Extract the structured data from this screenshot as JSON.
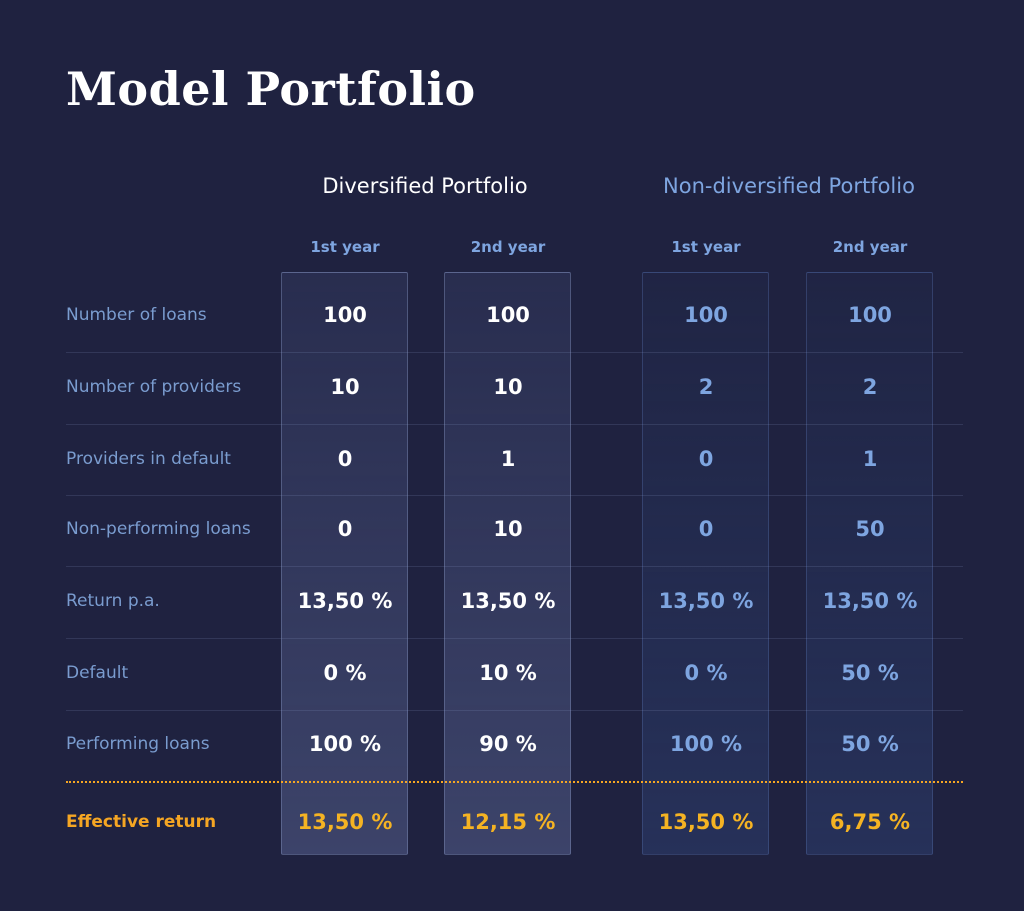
{
  "title": "Model Portfolio",
  "groups": {
    "diversified": "Diversified Portfolio",
    "non_diversified": "Non-diversified Portfolio"
  },
  "columns": [
    "1st year",
    "2nd year",
    "1st year",
    "2nd year"
  ],
  "colors": {
    "background": "#1f2240",
    "white": "#ffffff",
    "blue": "#7ea5e0",
    "label": "#7a9ccf",
    "gold": "#f5a623"
  },
  "chart_data": {
    "type": "table",
    "title": "Model Portfolio",
    "column_groups": [
      {
        "name": "Diversified Portfolio",
        "columns": [
          "1st year",
          "2nd year"
        ]
      },
      {
        "name": "Non-diversified Portfolio",
        "columns": [
          "1st year",
          "2nd year"
        ]
      }
    ],
    "rows": [
      {
        "label": "Number of loans",
        "values": [
          "100",
          "100",
          "100",
          "100"
        ]
      },
      {
        "label": "Number of providers",
        "values": [
          "10",
          "10",
          "2",
          "2"
        ]
      },
      {
        "label": "Providers in default",
        "values": [
          "0",
          "1",
          "0",
          "1"
        ]
      },
      {
        "label": "Non-performing loans",
        "values": [
          "0",
          "10",
          "0",
          "50"
        ]
      },
      {
        "label": "Return p.a.",
        "values": [
          "13,50 %",
          "13,50 %",
          "13,50 %",
          "13,50 %"
        ]
      },
      {
        "label": "Default",
        "values": [
          "0 %",
          "10 %",
          "0 %",
          "50 %"
        ]
      },
      {
        "label": "Performing loans",
        "values": [
          "100 %",
          "90 %",
          "100 %",
          "50 %"
        ]
      },
      {
        "label": "Effective return",
        "values": [
          "13,50 %",
          "12,15 %",
          "13,50 %",
          "6,75 %"
        ],
        "highlight": true
      }
    ]
  }
}
